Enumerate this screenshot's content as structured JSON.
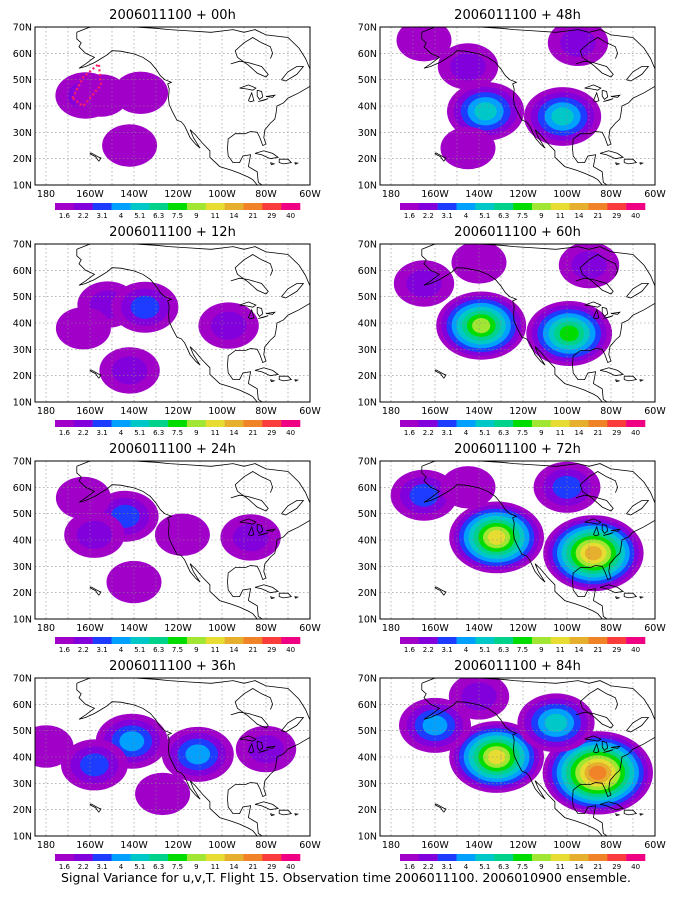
{
  "figure": {
    "caption": "Signal Variance for u,v,T. Flight 15. Observation time 2006011100. 2006010900 ensemble."
  },
  "shared": {
    "x_ticks": [
      "180",
      "160W",
      "140W",
      "120W",
      "100W",
      "80W",
      "60W"
    ],
    "y_ticks": [
      "10N",
      "20N",
      "30N",
      "40N",
      "50N",
      "60N",
      "70N"
    ],
    "colorbar_labels": [
      "1.6",
      "2.2",
      "3.1",
      "4",
      "5.1",
      "6.3",
      "7.5",
      "9",
      "11",
      "14",
      "21",
      "29",
      "40"
    ],
    "colorbar_colors": [
      "#a000c8",
      "#8200dc",
      "#1e3cff",
      "#00a0ff",
      "#00c8c8",
      "#00d28c",
      "#00dc00",
      "#a0e632",
      "#e6dc32",
      "#e6af2d",
      "#f08228",
      "#fa3c3c",
      "#f00082"
    ]
  },
  "chart_data": [
    {
      "type": "heatmap",
      "title": "2006011100 + 00h",
      "lon_range": [
        -185,
        -60
      ],
      "lat_range": [
        10,
        70
      ],
      "grid": true,
      "blobs": [
        {
          "lon": -162,
          "lat": 44,
          "value": 2.2
        },
        {
          "lon": -155,
          "lat": 44,
          "value": 1.6
        },
        {
          "lon": -137,
          "lat": 45,
          "value": 1.6
        },
        {
          "lon": -142,
          "lat": 25,
          "value": 1.6
        }
      ],
      "flight_track": [
        [
          -168,
          43
        ],
        [
          -163,
          51
        ],
        [
          -156,
          56
        ],
        [
          -155,
          48
        ],
        [
          -163,
          40
        ],
        [
          -168,
          43
        ]
      ]
    },
    {
      "type": "heatmap",
      "title": "2006011100 + 12h",
      "lon_range": [
        -185,
        -60
      ],
      "lat_range": [
        10,
        70
      ],
      "grid": true,
      "blobs": [
        {
          "lon": -152,
          "lat": 47,
          "value": 2.2
        },
        {
          "lon": -135,
          "lat": 46,
          "value": 3.1
        },
        {
          "lon": -163,
          "lat": 38,
          "value": 1.6
        },
        {
          "lon": -97,
          "lat": 39,
          "value": 2.2
        },
        {
          "lon": -142,
          "lat": 22,
          "value": 2.2
        }
      ]
    },
    {
      "type": "heatmap",
      "title": "2006011100 + 24h",
      "lon_range": [
        -185,
        -60
      ],
      "lat_range": [
        10,
        70
      ],
      "grid": true,
      "blobs": [
        {
          "lon": -144,
          "lat": 49,
          "value": 3.1
        },
        {
          "lon": -158,
          "lat": 42,
          "value": 2.2
        },
        {
          "lon": -163,
          "lat": 56,
          "value": 1.6
        },
        {
          "lon": -118,
          "lat": 42,
          "value": 1.6
        },
        {
          "lon": -87,
          "lat": 41,
          "value": 2.2
        },
        {
          "lon": -140,
          "lat": 24,
          "value": 1.6
        }
      ]
    },
    {
      "type": "heatmap",
      "title": "2006011100 + 36h",
      "lon_range": [
        -185,
        -60
      ],
      "lat_range": [
        10,
        70
      ],
      "grid": true,
      "blobs": [
        {
          "lon": -141,
          "lat": 46,
          "value": 4
        },
        {
          "lon": -158,
          "lat": 37,
          "value": 3.1
        },
        {
          "lon": -180,
          "lat": 44,
          "value": 1.6
        },
        {
          "lon": -111,
          "lat": 41,
          "value": 4
        },
        {
          "lon": -80,
          "lat": 43,
          "value": 2.2
        },
        {
          "lon": -127,
          "lat": 26,
          "value": 1.6
        }
      ]
    },
    {
      "type": "heatmap",
      "title": "2006011100 + 48h",
      "lon_range": [
        -185,
        -60
      ],
      "lat_range": [
        10,
        70
      ],
      "grid": true,
      "blobs": [
        {
          "lon": -137,
          "lat": 38,
          "value": 5.1
        },
        {
          "lon": -102,
          "lat": 36,
          "value": 5.1
        },
        {
          "lon": -145,
          "lat": 55,
          "value": 2.2
        },
        {
          "lon": -95,
          "lat": 64,
          "value": 2.2
        },
        {
          "lon": -165,
          "lat": 65,
          "value": 1.6
        },
        {
          "lon": -145,
          "lat": 24,
          "value": 1.6
        }
      ]
    },
    {
      "type": "heatmap",
      "title": "2006011100 + 60h",
      "lon_range": [
        -185,
        -60
      ],
      "lat_range": [
        10,
        70
      ],
      "grid": true,
      "blobs": [
        {
          "lon": -139,
          "lat": 39,
          "value": 9
        },
        {
          "lon": -99,
          "lat": 36,
          "value": 7.5
        },
        {
          "lon": -165,
          "lat": 55,
          "value": 2.2
        },
        {
          "lon": -90,
          "lat": 62,
          "value": 2.2
        },
        {
          "lon": -140,
          "lat": 63,
          "value": 1.6
        }
      ]
    },
    {
      "type": "heatmap",
      "title": "2006011100 + 72h",
      "lon_range": [
        -185,
        -60
      ],
      "lat_range": [
        10,
        70
      ],
      "grid": true,
      "blobs": [
        {
          "lon": -132,
          "lat": 41,
          "value": 11
        },
        {
          "lon": -88,
          "lat": 35,
          "value": 14
        },
        {
          "lon": -165,
          "lat": 57,
          "value": 3.1
        },
        {
          "lon": -100,
          "lat": 60,
          "value": 3.1
        },
        {
          "lon": -145,
          "lat": 60,
          "value": 1.6
        }
      ]
    },
    {
      "type": "heatmap",
      "title": "2006011100 + 84h",
      "lon_range": [
        -185,
        -60
      ],
      "lat_range": [
        10,
        70
      ],
      "grid": true,
      "blobs": [
        {
          "lon": -132,
          "lat": 40,
          "value": 11
        },
        {
          "lon": -86,
          "lat": 34,
          "value": 21
        },
        {
          "lon": -160,
          "lat": 52,
          "value": 4
        },
        {
          "lon": -105,
          "lat": 53,
          "value": 5.1
        },
        {
          "lon": -140,
          "lat": 63,
          "value": 2.2
        }
      ]
    }
  ]
}
